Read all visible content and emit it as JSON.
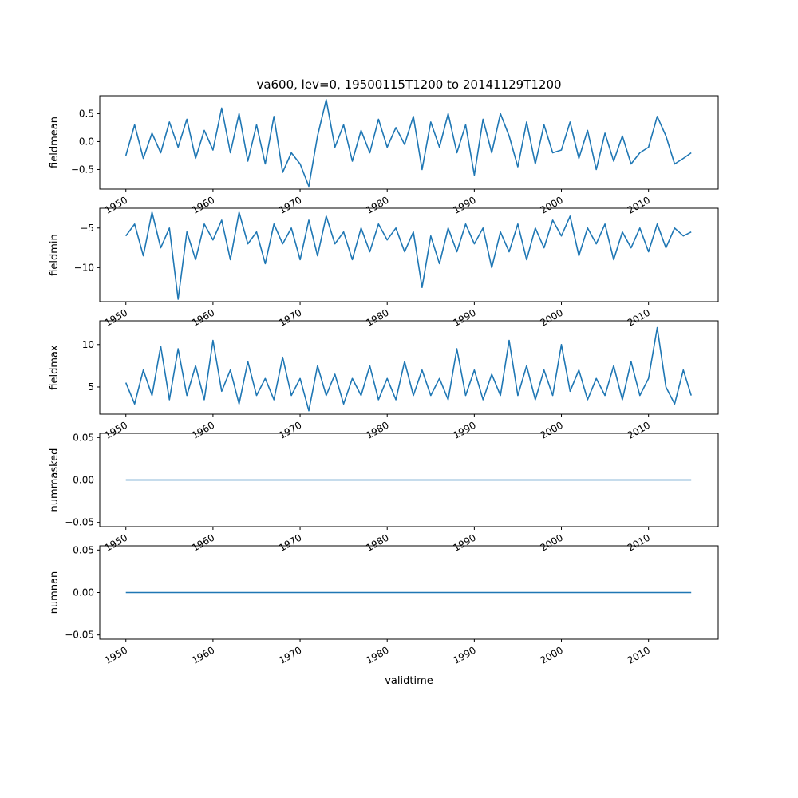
{
  "figure": {
    "title": "va600, lev=0, 19500115T1200 to 20141129T1200",
    "xlabel": "validtime",
    "line_color": "#1f77b4"
  },
  "chart_data": [
    {
      "type": "line",
      "ylabel": "fieldmean",
      "xlim": [
        1947.0,
        2018.0
      ],
      "ylim": [
        -0.85,
        0.82
      ],
      "xticks": [
        1950,
        1960,
        1970,
        1980,
        1990,
        2000,
        2010
      ],
      "xtick_labels": [
        "1950",
        "1960",
        "1970",
        "1980",
        "1990",
        "2000",
        "2010"
      ],
      "yticks": [
        0.5,
        0.0,
        -0.5
      ],
      "ytick_labels": [
        "0.5",
        "0.0",
        "−0.5"
      ],
      "x": [
        1950.0,
        1951.0,
        1952.0,
        1953.0,
        1954.0,
        1955.0,
        1956.0,
        1957.0,
        1958.0,
        1959.0,
        1960.0,
        1961.0,
        1962.0,
        1963.0,
        1964.0,
        1965.0,
        1966.0,
        1967.0,
        1968.0,
        1969.0,
        1970.0,
        1971.0,
        1972.0,
        1973.0,
        1974.0,
        1975.0,
        1976.0,
        1977.0,
        1978.0,
        1979.0,
        1980.0,
        1981.0,
        1982.0,
        1983.0,
        1984.0,
        1985.0,
        1986.0,
        1987.0,
        1988.0,
        1989.0,
        1990.0,
        1991.0,
        1992.0,
        1993.0,
        1994.0,
        1995.0,
        1996.0,
        1997.0,
        1998.0,
        1999.0,
        2000.0,
        2001.0,
        2002.0,
        2003.0,
        2004.0,
        2005.0,
        2006.0,
        2007.0,
        2008.0,
        2009.0,
        2010.0,
        2011.0,
        2012.0,
        2013.0,
        2014.0,
        2014.9
      ],
      "y": [
        -0.25,
        0.3,
        -0.3,
        0.15,
        -0.2,
        0.35,
        -0.1,
        0.4,
        -0.3,
        0.2,
        -0.15,
        0.6,
        -0.2,
        0.5,
        -0.35,
        0.3,
        -0.4,
        0.45,
        -0.55,
        -0.2,
        -0.4,
        -0.8,
        0.1,
        0.75,
        -0.1,
        0.3,
        -0.35,
        0.2,
        -0.2,
        0.4,
        -0.1,
        0.25,
        -0.05,
        0.45,
        -0.5,
        0.35,
        -0.1,
        0.5,
        -0.2,
        0.3,
        -0.6,
        0.4,
        -0.2,
        0.5,
        0.1,
        -0.45,
        0.35,
        -0.4,
        0.3,
        -0.2,
        -0.15,
        0.35,
        -0.3,
        0.2,
        -0.5,
        0.15,
        -0.35,
        0.1,
        -0.4,
        -0.2,
        -0.1,
        0.45,
        0.1,
        -0.4,
        -0.3,
        -0.2
      ]
    },
    {
      "type": "line",
      "ylabel": "fieldmin",
      "xlim": [
        1947.0,
        2018.0
      ],
      "ylim": [
        -14.3,
        -2.5
      ],
      "xticks": [
        1950,
        1960,
        1970,
        1980,
        1990,
        2000,
        2010
      ],
      "xtick_labels": [
        "1950",
        "1960",
        "1970",
        "1980",
        "1990",
        "2000",
        "2010"
      ],
      "yticks": [
        -5,
        -10
      ],
      "ytick_labels": [
        "−5",
        "−10"
      ],
      "x": [
        1950.0,
        1951.0,
        1952.0,
        1953.0,
        1954.0,
        1955.0,
        1956.0,
        1957.0,
        1958.0,
        1959.0,
        1960.0,
        1961.0,
        1962.0,
        1963.0,
        1964.0,
        1965.0,
        1966.0,
        1967.0,
        1968.0,
        1969.0,
        1970.0,
        1971.0,
        1972.0,
        1973.0,
        1974.0,
        1975.0,
        1976.0,
        1977.0,
        1978.0,
        1979.0,
        1980.0,
        1981.0,
        1982.0,
        1983.0,
        1984.0,
        1985.0,
        1986.0,
        1987.0,
        1988.0,
        1989.0,
        1990.0,
        1991.0,
        1992.0,
        1993.0,
        1994.0,
        1995.0,
        1996.0,
        1997.0,
        1998.0,
        1999.0,
        2000.0,
        2001.0,
        2002.0,
        2003.0,
        2004.0,
        2005.0,
        2006.0,
        2007.0,
        2008.0,
        2009.0,
        2010.0,
        2011.0,
        2012.0,
        2013.0,
        2014.0,
        2014.9
      ],
      "y": [
        -6,
        -4.5,
        -8.5,
        -3,
        -7.5,
        -5,
        -14,
        -5.5,
        -9,
        -4.5,
        -6.5,
        -4,
        -9,
        -3,
        -7,
        -5.5,
        -9.5,
        -4.5,
        -7,
        -5,
        -9,
        -4,
        -8.5,
        -3.5,
        -7,
        -5.5,
        -9,
        -5,
        -8,
        -4.5,
        -6.5,
        -5,
        -8,
        -5.5,
        -12.5,
        -6,
        -9.5,
        -5,
        -8,
        -4.5,
        -7,
        -5,
        -10,
        -5.5,
        -8,
        -4.5,
        -9,
        -5,
        -7.5,
        -4,
        -6,
        -3.5,
        -8.5,
        -5,
        -7,
        -4.5,
        -9,
        -5.5,
        -7.5,
        -5,
        -8,
        -4.5,
        -7.5,
        -5,
        -6,
        -5.5
      ]
    },
    {
      "type": "line",
      "ylabel": "fieldmax",
      "xlim": [
        1947.0,
        2018.0
      ],
      "ylim": [
        1.8,
        12.8
      ],
      "xticks": [
        1950,
        1960,
        1970,
        1980,
        1990,
        2000,
        2010
      ],
      "xtick_labels": [
        "1950",
        "1960",
        "1970",
        "1980",
        "1990",
        "2000",
        "2010"
      ],
      "yticks": [
        10,
        5
      ],
      "ytick_labels": [
        "10",
        "5"
      ],
      "x": [
        1950.0,
        1951.0,
        1952.0,
        1953.0,
        1954.0,
        1955.0,
        1956.0,
        1957.0,
        1958.0,
        1959.0,
        1960.0,
        1961.0,
        1962.0,
        1963.0,
        1964.0,
        1965.0,
        1966.0,
        1967.0,
        1968.0,
        1969.0,
        1970.0,
        1971.0,
        1972.0,
        1973.0,
        1974.0,
        1975.0,
        1976.0,
        1977.0,
        1978.0,
        1979.0,
        1980.0,
        1981.0,
        1982.0,
        1983.0,
        1984.0,
        1985.0,
        1986.0,
        1987.0,
        1988.0,
        1989.0,
        1990.0,
        1991.0,
        1992.0,
        1993.0,
        1994.0,
        1995.0,
        1996.0,
        1997.0,
        1998.0,
        1999.0,
        2000.0,
        2001.0,
        2002.0,
        2003.0,
        2004.0,
        2005.0,
        2006.0,
        2007.0,
        2008.0,
        2009.0,
        2010.0,
        2011.0,
        2012.0,
        2013.0,
        2014.0,
        2014.9
      ],
      "y": [
        5.5,
        3,
        7,
        4,
        9.8,
        3.5,
        9.5,
        4,
        7.5,
        3.5,
        10.5,
        4.5,
        7,
        3,
        8,
        4,
        6,
        3.5,
        8.5,
        4,
        6,
        2.2,
        7.5,
        4,
        6.5,
        3,
        6,
        4,
        7.5,
        3.5,
        6,
        3.5,
        8,
        4,
        7,
        4,
        6,
        3.5,
        9.5,
        4,
        7,
        3.5,
        6.5,
        4,
        10.5,
        4,
        7.5,
        3.5,
        7,
        4,
        10,
        4.5,
        7,
        3.5,
        6,
        4,
        7.5,
        3.5,
        8,
        4,
        6,
        12,
        5,
        3,
        7,
        4
      ]
    },
    {
      "type": "line",
      "ylabel": "nummasked",
      "xlim": [
        1947.0,
        2018.0
      ],
      "ylim": [
        -0.055,
        0.055
      ],
      "xticks": [
        1950,
        1960,
        1970,
        1980,
        1990,
        2000,
        2010
      ],
      "xtick_labels": [
        "1950",
        "1960",
        "1970",
        "1980",
        "1990",
        "2000",
        "2010"
      ],
      "yticks": [
        0.05,
        0.0,
        -0.05
      ],
      "ytick_labels": [
        "0.05",
        "0.00",
        "−0.05"
      ],
      "x": [
        1950.0,
        2014.9
      ],
      "y": [
        0.0,
        0.0
      ]
    },
    {
      "type": "line",
      "ylabel": "numnan",
      "xlim": [
        1947.0,
        2018.0
      ],
      "ylim": [
        -0.055,
        0.055
      ],
      "xticks": [
        1950,
        1960,
        1970,
        1980,
        1990,
        2000,
        2010
      ],
      "xtick_labels": [
        "1950",
        "1960",
        "1970",
        "1980",
        "1990",
        "2000",
        "2010"
      ],
      "yticks": [
        0.05,
        0.0,
        -0.05
      ],
      "ytick_labels": [
        "0.05",
        "0.00",
        "−0.05"
      ],
      "x": [
        1950.0,
        2014.9
      ],
      "y": [
        0.0,
        0.0
      ]
    }
  ]
}
